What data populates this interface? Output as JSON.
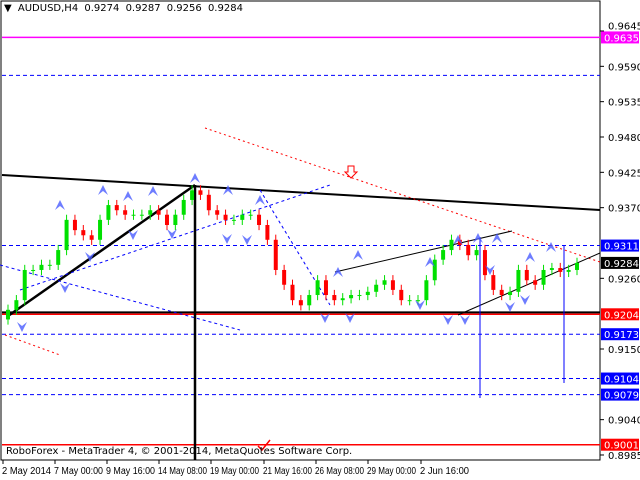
{
  "header": {
    "symbol": "AUDUSD,H4",
    "open": "0.9274",
    "high": "0.9287",
    "low": "0.9256",
    "close": "0.9284"
  },
  "copyright": "RoboForex - MetaTrader 4, © 2001-2014, MetaQuotes Software Corp.",
  "colors": {
    "bull": "#00e000",
    "bear": "#ff0000",
    "magenta": "#ff00ff",
    "blue": "#0000ff",
    "red": "#ff0000",
    "black": "#000000",
    "arrow": "#4a5cff"
  },
  "chart_data": {
    "type": "candlestick",
    "symbol": "AUDUSD",
    "timeframe": "H4",
    "ylim": [
      0.8985,
      0.9645
    ],
    "y_ticks": [
      "0.9645",
      "0.9590",
      "0.9535",
      "0.9480",
      "0.9425",
      "0.9370",
      "0.9260",
      "0.9150",
      "0.9040",
      "0.8985"
    ],
    "x_ticks": [
      "2 May 2014",
      "7 May 00:00",
      "9 May 16:00",
      "14 May 08:00",
      "19 May 00:00",
      "21 May 16:00",
      "26 May 08:00",
      "29 May 00:00",
      "2 Jun 16:00"
    ],
    "closes": [
      0.9211,
      0.9226,
      0.9273,
      0.9273,
      0.9281,
      0.9281,
      0.9304,
      0.9351,
      0.9335,
      0.9327,
      0.932,
      0.9351,
      0.9374,
      0.9366,
      0.9359,
      0.9359,
      0.9359,
      0.9366,
      0.9359,
      0.9343,
      0.9359,
      0.9382,
      0.9397,
      0.939,
      0.9366,
      0.9359,
      0.9351,
      0.9351,
      0.9359,
      0.9359,
      0.9343,
      0.932,
      0.9273,
      0.925,
      0.9226,
      0.9218,
      0.9234,
      0.9257,
      0.9234,
      0.9226,
      0.9229,
      0.9234,
      0.9234,
      0.9239,
      0.925,
      0.9257,
      0.9242,
      0.9226,
      0.9226,
      0.9226,
      0.9257,
      0.9289,
      0.9304,
      0.932,
      0.9312,
      0.9296,
      0.9304,
      0.9265,
      0.9242,
      0.9234,
      0.9239,
      0.9273,
      0.9257,
      0.925,
      0.9273,
      0.9276,
      0.927,
      0.9273,
      0.9284
    ],
    "levels": [
      {
        "price": 0.9635,
        "label": "0.9635",
        "style": "solid",
        "color": "#ff00ff"
      },
      {
        "price": 0.9576,
        "label": "",
        "style": "dashed",
        "color": "#0000ff"
      },
      {
        "price": 0.9311,
        "label": "0.9311",
        "style": "dashed",
        "color": "#0000ff"
      },
      {
        "price": 0.9204,
        "label": "0.9204",
        "style": "solid",
        "color": "#ff0000"
      },
      {
        "price": 0.9173,
        "label": "0.9173",
        "style": "dashed",
        "color": "#0000ff"
      },
      {
        "price": 0.9104,
        "label": "0.9104",
        "style": "dashed",
        "color": "#0000ff"
      },
      {
        "price": 0.9079,
        "label": "0.9079",
        "style": "dashed",
        "color": "#0000ff"
      },
      {
        "price": 0.9001,
        "label": "0.9001",
        "style": "solid",
        "color": "#ff0000"
      }
    ],
    "current_price": {
      "price": 0.9284,
      "label": "0.9284"
    }
  }
}
